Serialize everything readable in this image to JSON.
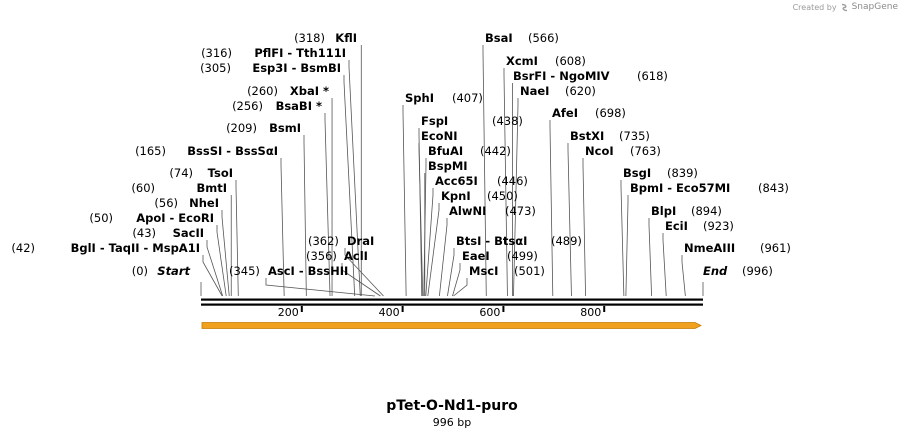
{
  "credit": {
    "created_by": "Created by",
    "brand": "SnapGene"
  },
  "plasmid": {
    "name": "pTet-O-Nd1-puro",
    "length_label": "996 bp",
    "length": 996
  },
  "colors": {
    "feature_fill": "#f0a21e",
    "feature_outline": "#c47b00",
    "backbone": "#000000",
    "leader": "#555555"
  },
  "ticks": [
    {
      "pos": 200,
      "label": "200"
    },
    {
      "pos": 400,
      "label": "400"
    },
    {
      "pos": 600,
      "label": "600"
    },
    {
      "pos": 800,
      "label": "800"
    }
  ],
  "sites": [
    {
      "pos": 0,
      "pos_label": "(0)",
      "name": "Start",
      "italic": true
    },
    {
      "pos": 42,
      "pos_label": "(42)",
      "name": "BglI  -  TaqII  -  MspA1I"
    },
    {
      "pos": 43,
      "pos_label": "(43)",
      "name": "SacII"
    },
    {
      "pos": 50,
      "pos_label": "(50)",
      "name": "ApoI  -  EcoRI"
    },
    {
      "pos": 56,
      "pos_label": "(56)",
      "name": "NheI"
    },
    {
      "pos": 60,
      "pos_label": "(60)",
      "name": "BmtI"
    },
    {
      "pos": 74,
      "pos_label": "(74)",
      "name": "TsoI"
    },
    {
      "pos": 165,
      "pos_label": "(165)",
      "name": "BssSI  -  BssSαI"
    },
    {
      "pos": 209,
      "pos_label": "(209)",
      "name": "BsmI"
    },
    {
      "pos": 256,
      "pos_label": "(256)",
      "name": "BsaBI *"
    },
    {
      "pos": 260,
      "pos_label": "(260)",
      "name": "XbaI *"
    },
    {
      "pos": 305,
      "pos_label": "(305)",
      "name": "Esp3I  -  BsmBI"
    },
    {
      "pos": 316,
      "pos_label": "(316)",
      "name": "PflFI  -  Tth111I"
    },
    {
      "pos": 318,
      "pos_label": "(318)",
      "name": "KflI"
    },
    {
      "pos": 345,
      "pos_label": "(345)",
      "name": "AscI  -  BssHII"
    },
    {
      "pos": 356,
      "pos_label": "(356)",
      "name": "AclI"
    },
    {
      "pos": 362,
      "pos_label": "(362)",
      "name": "DraI"
    },
    {
      "pos": 407,
      "pos_label": "(407)",
      "name": "SphI"
    },
    {
      "pos": 438,
      "pos_label": "(438)",
      "name": "FspI"
    },
    {
      "pos": 440,
      "pos_label": "",
      "name": "EcoNI"
    },
    {
      "pos": 442,
      "pos_label": "(442)",
      "name": "BfuAI"
    },
    {
      "pos": 444,
      "pos_label": "",
      "name": "BspMI"
    },
    {
      "pos": 446,
      "pos_label": "(446)",
      "name": "Acc65I"
    },
    {
      "pos": 450,
      "pos_label": "(450)",
      "name": "KpnI"
    },
    {
      "pos": 473,
      "pos_label": "(473)",
      "name": "AlwNI"
    },
    {
      "pos": 489,
      "pos_label": "(489)",
      "name": "BtsI  -  BtsαI"
    },
    {
      "pos": 499,
      "pos_label": "(499)",
      "name": "EaeI"
    },
    {
      "pos": 501,
      "pos_label": "(501)",
      "name": "MscI"
    },
    {
      "pos": 566,
      "pos_label": "(566)",
      "name": "BsaI"
    },
    {
      "pos": 608,
      "pos_label": "(608)",
      "name": "XcmI"
    },
    {
      "pos": 618,
      "pos_label": "(618)",
      "name": "BsrFI  -  NgoMIV"
    },
    {
      "pos": 620,
      "pos_label": "(620)",
      "name": "NaeI"
    },
    {
      "pos": 698,
      "pos_label": "(698)",
      "name": "AfeI"
    },
    {
      "pos": 735,
      "pos_label": "(735)",
      "name": "BstXI"
    },
    {
      "pos": 763,
      "pos_label": "(763)",
      "name": "NcoI"
    },
    {
      "pos": 839,
      "pos_label": "(839)",
      "name": "BsgI"
    },
    {
      "pos": 843,
      "pos_label": "(843)",
      "name": "BpmI  -  Eco57MI"
    },
    {
      "pos": 894,
      "pos_label": "(894)",
      "name": "BlpI"
    },
    {
      "pos": 923,
      "pos_label": "(923)",
      "name": "EciI"
    },
    {
      "pos": 961,
      "pos_label": "(961)",
      "name": "NmeAIII"
    },
    {
      "pos": 996,
      "pos_label": "(996)",
      "name": "End",
      "italic": true
    }
  ]
}
